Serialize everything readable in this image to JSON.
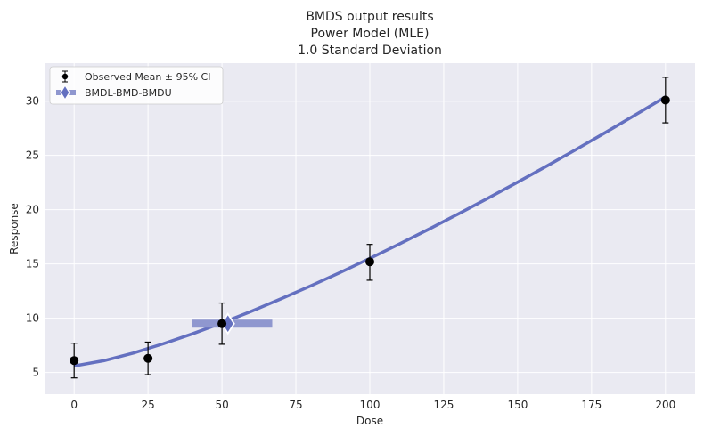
{
  "chart_data": {
    "type": "scatter",
    "title": [
      "BMDS output results",
      "Power Model (MLE)",
      "1.0 Standard Deviation"
    ],
    "xlabel": "Dose",
    "ylabel": "Response",
    "xlim": [
      -10,
      210
    ],
    "ylim": [
      3.0,
      33.5
    ],
    "xticks": [
      0,
      25,
      50,
      75,
      100,
      125,
      150,
      175,
      200
    ],
    "yticks": [
      5,
      10,
      15,
      20,
      25,
      30
    ],
    "grid": true,
    "legend_position": "top-left",
    "legend": [
      "Observed Mean ± 95% CI",
      "BMDL-BMD-BMDU"
    ],
    "observed": [
      {
        "x": 0,
        "y": 6.1,
        "lower": 4.5,
        "upper": 7.7
      },
      {
        "x": 25,
        "y": 6.3,
        "lower": 4.8,
        "upper": 7.8
      },
      {
        "x": 50,
        "y": 9.5,
        "lower": 7.6,
        "upper": 11.4
      },
      {
        "x": 100,
        "y": 15.2,
        "lower": 13.5,
        "upper": 16.8
      },
      {
        "x": 200,
        "y": 30.1,
        "lower": 28.0,
        "upper": 32.2
      }
    ],
    "model_curve": {
      "x": [
        0,
        10,
        20,
        30,
        40,
        50,
        60,
        70,
        80,
        90,
        100,
        110,
        120,
        130,
        140,
        150,
        160,
        170,
        180,
        190,
        200
      ],
      "y": [
        5.6,
        6.08,
        6.79,
        7.63,
        8.56,
        9.57,
        10.65,
        11.79,
        12.98,
        14.22,
        15.51,
        16.84,
        18.21,
        19.62,
        21.06,
        22.54,
        24.05,
        25.59,
        27.16,
        28.76,
        30.39
      ]
    },
    "bmd": {
      "bmdl": 40,
      "bmd": 52,
      "bmdu": 67,
      "response": 9.5
    },
    "colors": {
      "background": "#eaeaf2",
      "grid": "#ffffff",
      "model": "#6470c0",
      "bmd_band": "#8f97cf",
      "observed": "#000000"
    }
  }
}
